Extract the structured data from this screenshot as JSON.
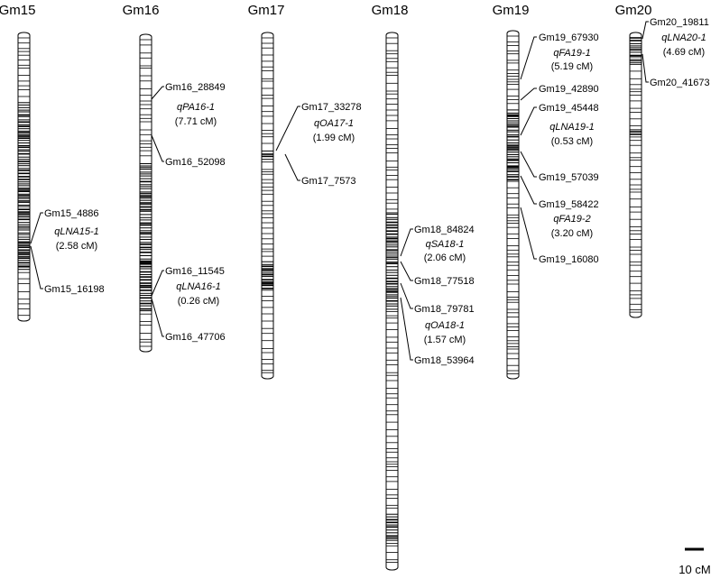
{
  "chromosomes": [
    {
      "name": "Gm15",
      "markers": [
        "Gm15_4886",
        "Gm15_16198"
      ],
      "qtls": [
        {
          "name": "qLNA15-1",
          "interval": "(2.58 cM)"
        }
      ]
    },
    {
      "name": "Gm16",
      "markers": [
        "Gm16_28849",
        "Gm16_52098",
        "Gm16_11545",
        "Gm16_47706"
      ],
      "qtls": [
        {
          "name": "qPA16-1",
          "interval": "(7.71 cM)"
        },
        {
          "name": "qLNA16-1",
          "interval": "(0.26 cM)"
        }
      ]
    },
    {
      "name": "Gm17",
      "markers": [
        "Gm17_33278",
        "Gm17_7573"
      ],
      "qtls": [
        {
          "name": "qOA17-1",
          "interval": "(1.99 cM)"
        }
      ]
    },
    {
      "name": "Gm18",
      "markers": [
        "Gm18_84824",
        "Gm18_77518",
        "Gm18_79781",
        "Gm18_53964"
      ],
      "qtls": [
        {
          "name": "qSA18-1",
          "interval": "(2.06 cM)"
        },
        {
          "name": "qOA18-1",
          "interval": "(1.57 cM)"
        }
      ]
    },
    {
      "name": "Gm19",
      "markers": [
        "Gm19_67930",
        "Gm19_42890",
        "Gm19_45448",
        "Gm19_57039",
        "Gm19_58422",
        "Gm19_16080"
      ],
      "qtls": [
        {
          "name": "qFA19-1",
          "interval": "(5.19 cM)"
        },
        {
          "name": "qLNA19-1",
          "interval": "(0.53 cM)"
        },
        {
          "name": "qFA19-2",
          "interval": "(3.20 cM)"
        }
      ]
    },
    {
      "name": "Gm20",
      "markers": [
        "Gm20_19811",
        "Gm20_41673"
      ],
      "qtls": [
        {
          "name": "qLNA20-1",
          "interval": "(4.69 cM)"
        }
      ]
    }
  ],
  "scale": {
    "label": "10 cM"
  }
}
